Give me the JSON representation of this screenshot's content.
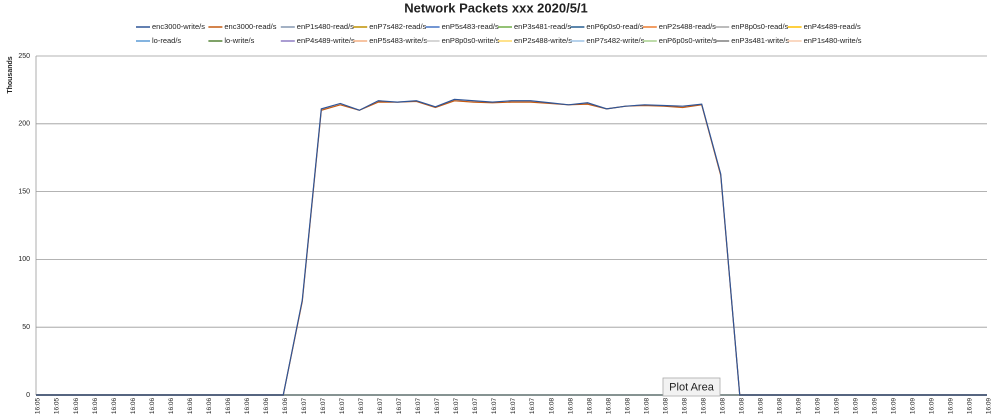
{
  "chart_data": {
    "type": "line",
    "title": "Network Packets xxx  2020/5/1",
    "ylabel": "Thousands",
    "annotation": "Plot Area",
    "grid": true,
    "ylim": [
      0,
      250
    ],
    "yticks": [
      0,
      50,
      100,
      150,
      200,
      250
    ],
    "categories": [
      "16:05",
      "16:05",
      "16:06",
      "16:06",
      "16:06",
      "16:06",
      "16:06",
      "16:06",
      "16:06",
      "16:06",
      "16:06",
      "16:06",
      "16:06",
      "16:06",
      "16:07",
      "16:07",
      "16:07",
      "16:07",
      "16:07",
      "16:07",
      "16:07",
      "16:07",
      "16:07",
      "16:07",
      "16:07",
      "16:07",
      "16:07",
      "16:08",
      "16:08",
      "16:08",
      "16:08",
      "16:08",
      "16:08",
      "16:08",
      "16:08",
      "16:08",
      "16:08",
      "16:08",
      "16:08",
      "16:08",
      "16:09",
      "16:09",
      "16:09",
      "16:09",
      "16:09",
      "16:09",
      "16:09",
      "16:09",
      "16:09",
      "16:09",
      "16:09"
    ],
    "series": [
      {
        "name": "enc3000-write/s",
        "color": "#2f5597",
        "values": [
          0,
          0,
          0,
          0,
          0,
          0,
          0,
          0,
          0,
          0,
          0,
          0,
          0,
          0,
          70,
          211,
          215,
          210,
          217,
          216,
          217,
          212.5,
          218,
          217,
          216,
          217,
          217,
          215.5,
          214,
          215.5,
          211,
          213,
          214,
          213.5,
          213,
          214.5,
          163,
          0,
          0,
          0,
          0,
          0,
          0,
          0,
          0,
          0,
          0,
          0,
          0,
          0,
          0
        ]
      },
      {
        "name": "enc3000-read/s",
        "color": "#c55a11",
        "values": [
          0,
          0,
          0,
          0,
          0,
          0,
          0,
          0,
          0,
          0,
          0,
          0,
          0,
          0,
          69,
          210,
          214,
          210,
          216,
          216,
          216.5,
          212,
          217,
          216,
          215.5,
          216,
          216,
          215,
          214,
          214.5,
          211,
          213,
          213.5,
          213,
          212,
          214,
          162,
          0,
          0,
          0,
          0,
          0,
          0,
          0,
          0,
          0,
          0,
          0,
          0,
          0,
          0
        ]
      },
      {
        "name": "enP1s480-read/s",
        "color": "#8497b0",
        "values": [
          0,
          0,
          0,
          0,
          0,
          0,
          0,
          0,
          0,
          0,
          0,
          0,
          0,
          0,
          0,
          0,
          0,
          0,
          0,
          0,
          0,
          0,
          0,
          0,
          0,
          0,
          0,
          0,
          0,
          0,
          0,
          0,
          0,
          0,
          0,
          0,
          0,
          0,
          0,
          0,
          0,
          0,
          0,
          0,
          0,
          0,
          0,
          0,
          0,
          0,
          0
        ]
      },
      {
        "name": "enP7s482-read/s",
        "color": "#bf9000",
        "values": [
          0,
          0,
          0,
          0,
          0,
          0,
          0,
          0,
          0,
          0,
          0,
          0,
          0,
          0,
          0,
          0,
          0,
          0,
          0,
          0,
          0,
          0,
          0,
          0,
          0,
          0,
          0,
          0,
          0,
          0,
          0,
          0,
          0,
          0,
          0,
          0,
          0,
          0,
          0,
          0,
          0,
          0,
          0,
          0,
          0,
          0,
          0,
          0,
          0,
          0,
          0
        ]
      },
      {
        "name": "enP5s483-read/s",
        "color": "#4472c4",
        "values": [
          0,
          0,
          0,
          0,
          0,
          0,
          0,
          0,
          0,
          0,
          0,
          0,
          0,
          0,
          0,
          0,
          0,
          0,
          0,
          0,
          0,
          0,
          0,
          0,
          0,
          0,
          0,
          0,
          0,
          0,
          0,
          0,
          0,
          0,
          0,
          0,
          0,
          0,
          0,
          0,
          0,
          0,
          0,
          0,
          0,
          0,
          0,
          0,
          0,
          0,
          0
        ]
      },
      {
        "name": "enP3s481-read/s",
        "color": "#70ad47",
        "values": [
          0,
          0,
          0,
          0,
          0,
          0,
          0,
          0,
          0,
          0,
          0,
          0,
          0,
          0,
          0,
          0,
          0,
          0,
          0,
          0,
          0,
          0,
          0,
          0,
          0,
          0,
          0,
          0,
          0,
          0,
          0,
          0,
          0,
          0,
          0,
          0,
          0,
          0,
          0,
          0,
          0,
          0,
          0,
          0,
          0,
          0,
          0,
          0,
          0,
          0,
          0
        ]
      },
      {
        "name": "enP6p0s0-read/s",
        "color": "#255e91",
        "values": [
          0,
          0,
          0,
          0,
          0,
          0,
          0,
          0,
          0,
          0,
          0,
          0,
          0,
          0,
          0,
          0,
          0,
          0,
          0,
          0,
          0,
          0,
          0,
          0,
          0,
          0,
          0,
          0,
          0,
          0,
          0,
          0,
          0,
          0,
          0,
          0,
          0,
          0,
          0,
          0,
          0,
          0,
          0,
          0,
          0,
          0,
          0,
          0,
          0,
          0,
          0
        ]
      },
      {
        "name": "enP2s488-read/s",
        "color": "#ed7d31",
        "values": [
          0,
          0,
          0,
          0,
          0,
          0,
          0,
          0,
          0,
          0,
          0,
          0,
          0,
          0,
          0,
          0,
          0,
          0,
          0,
          0,
          0,
          0,
          0,
          0,
          0,
          0,
          0,
          0,
          0,
          0,
          0,
          0,
          0,
          0,
          0,
          0,
          0,
          0,
          0,
          0,
          0,
          0,
          0,
          0,
          0,
          0,
          0,
          0,
          0,
          0,
          0
        ]
      },
      {
        "name": "enP8p0s0-read/s",
        "color": "#a5a5a5",
        "values": [
          0,
          0,
          0,
          0,
          0,
          0,
          0,
          0,
          0,
          0,
          0,
          0,
          0,
          0,
          0,
          0,
          0,
          0,
          0,
          0,
          0,
          0,
          0,
          0,
          0,
          0,
          0,
          0,
          0,
          0,
          0,
          0,
          0,
          0,
          0,
          0,
          0,
          0,
          0,
          0,
          0,
          0,
          0,
          0,
          0,
          0,
          0,
          0,
          0,
          0,
          0
        ]
      },
      {
        "name": "enP4s489-read/s",
        "color": "#ffc000",
        "values": [
          0,
          0,
          0,
          0,
          0,
          0,
          0,
          0,
          0,
          0,
          0,
          0,
          0,
          0,
          0,
          0,
          0,
          0,
          0,
          0,
          0,
          0,
          0,
          0,
          0,
          0,
          0,
          0,
          0,
          0,
          0,
          0,
          0,
          0,
          0,
          0,
          0,
          0,
          0,
          0,
          0,
          0,
          0,
          0,
          0,
          0,
          0,
          0,
          0,
          0,
          0
        ]
      },
      {
        "name": "lo-read/s",
        "color": "#5b9bd5",
        "values": [
          0,
          0,
          0,
          0,
          0,
          0,
          0,
          0,
          0,
          0,
          0,
          0,
          0,
          0,
          0,
          0,
          0,
          0,
          0,
          0,
          0,
          0,
          0,
          0,
          0,
          0,
          0,
          0,
          0,
          0,
          0,
          0,
          0,
          0,
          0,
          0,
          0,
          0,
          0,
          0,
          0,
          0,
          0,
          0,
          0,
          0,
          0,
          0,
          0,
          0,
          0
        ]
      },
      {
        "name": "lo-write/s",
        "color": "#548235",
        "values": [
          0,
          0,
          0,
          0,
          0,
          0,
          0,
          0,
          0,
          0,
          0,
          0,
          0,
          0,
          0,
          0,
          0,
          0,
          0,
          0,
          0,
          0,
          0,
          0,
          0,
          0,
          0,
          0,
          0,
          0,
          0,
          0,
          0,
          0,
          0,
          0,
          0,
          0,
          0,
          0,
          0,
          0,
          0,
          0,
          0,
          0,
          0,
          0,
          0,
          0,
          0
        ]
      },
      {
        "name": "enP4s489-write/s",
        "color": "#8e7cc3",
        "values": [
          0,
          0,
          0,
          0,
          0,
          0,
          0,
          0,
          0,
          0,
          0,
          0,
          0,
          0,
          0,
          0,
          0,
          0,
          0,
          0,
          0,
          0,
          0,
          0,
          0,
          0,
          0,
          0,
          0,
          0,
          0,
          0,
          0,
          0,
          0,
          0,
          0,
          0,
          0,
          0,
          0,
          0,
          0,
          0,
          0,
          0,
          0,
          0,
          0,
          0,
          0
        ]
      },
      {
        "name": "enP5s483-write/s",
        "color": "#f4b183",
        "values": [
          0,
          0,
          0,
          0,
          0,
          0,
          0,
          0,
          0,
          0,
          0,
          0,
          0,
          0,
          0,
          0,
          0,
          0,
          0,
          0,
          0,
          0,
          0,
          0,
          0,
          0,
          0,
          0,
          0,
          0,
          0,
          0,
          0,
          0,
          0,
          0,
          0,
          0,
          0,
          0,
          0,
          0,
          0,
          0,
          0,
          0,
          0,
          0,
          0,
          0,
          0
        ]
      },
      {
        "name": "enP8p0s0-write/s",
        "color": "#c9c9c9",
        "values": [
          0,
          0,
          0,
          0,
          0,
          0,
          0,
          0,
          0,
          0,
          0,
          0,
          0,
          0,
          0,
          0,
          0,
          0,
          0,
          0,
          0,
          0,
          0,
          0,
          0,
          0,
          0,
          0,
          0,
          0,
          0,
          0,
          0,
          0,
          0,
          0,
          0,
          0,
          0,
          0,
          0,
          0,
          0,
          0,
          0,
          0,
          0,
          0,
          0,
          0,
          0
        ]
      },
      {
        "name": "enP2s488-write/s",
        "color": "#ffd966",
        "values": [
          0,
          0,
          0,
          0,
          0,
          0,
          0,
          0,
          0,
          0,
          0,
          0,
          0,
          0,
          0,
          0,
          0,
          0,
          0,
          0,
          0,
          0,
          0,
          0,
          0,
          0,
          0,
          0,
          0,
          0,
          0,
          0,
          0,
          0,
          0,
          0,
          0,
          0,
          0,
          0,
          0,
          0,
          0,
          0,
          0,
          0,
          0,
          0,
          0,
          0,
          0
        ]
      },
      {
        "name": "enP7s482-write/s",
        "color": "#9dc3e6",
        "values": [
          0,
          0,
          0,
          0,
          0,
          0,
          0,
          0,
          0,
          0,
          0,
          0,
          0,
          0,
          0,
          0,
          0,
          0,
          0,
          0,
          0,
          0,
          0,
          0,
          0,
          0,
          0,
          0,
          0,
          0,
          0,
          0,
          0,
          0,
          0,
          0,
          0,
          0,
          0,
          0,
          0,
          0,
          0,
          0,
          0,
          0,
          0,
          0,
          0,
          0,
          0
        ]
      },
      {
        "name": "enP6p0s0-write/s",
        "color": "#a9d18e",
        "values": [
          0,
          0,
          0,
          0,
          0,
          0,
          0,
          0,
          0,
          0,
          0,
          0,
          0,
          0,
          0,
          0,
          0,
          0,
          0,
          0,
          0,
          0,
          0,
          0,
          0,
          0,
          0,
          0,
          0,
          0,
          0,
          0,
          0,
          0,
          0,
          0,
          0,
          0,
          0,
          0,
          0,
          0,
          0,
          0,
          0,
          0,
          0,
          0,
          0,
          0,
          0
        ]
      },
      {
        "name": "enP3s481-write/s",
        "color": "#7f7f7f",
        "values": [
          0,
          0,
          0,
          0,
          0,
          0,
          0,
          0,
          0,
          0,
          0,
          0,
          0,
          0,
          0,
          0,
          0,
          0,
          0,
          0,
          0,
          0,
          0,
          0,
          0,
          0,
          0,
          0,
          0,
          0,
          0,
          0,
          0,
          0,
          0,
          0,
          0,
          0,
          0,
          0,
          0,
          0,
          0,
          0,
          0,
          0,
          0,
          0,
          0,
          0,
          0
        ]
      },
      {
        "name": "enP1s480-write/s",
        "color": "#f8cbad",
        "values": [
          0,
          0,
          0,
          0,
          0,
          0,
          0,
          0,
          0,
          0,
          0,
          0,
          0,
          0,
          0,
          0,
          0,
          0,
          0,
          0,
          0,
          0,
          0,
          0,
          0,
          0,
          0,
          0,
          0,
          0,
          0,
          0,
          0,
          0,
          0,
          0,
          0,
          0,
          0,
          0,
          0,
          0,
          0,
          0,
          0,
          0,
          0,
          0,
          0,
          0,
          0
        ]
      }
    ]
  }
}
